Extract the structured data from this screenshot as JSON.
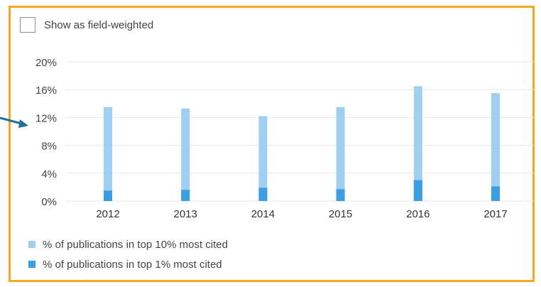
{
  "toggle": {
    "label": "Show as field-weighted",
    "checked": false
  },
  "colors": {
    "frame": "#f5a623",
    "top10": "#9fd0f2",
    "top1": "#3a9ee4",
    "grid": "#e8e8e8",
    "arrow": "#1f6e9c"
  },
  "chart_data": {
    "type": "bar",
    "stacked": false,
    "overlay": true,
    "categories": [
      "2012",
      "2013",
      "2014",
      "2015",
      "2016",
      "2017"
    ],
    "series": [
      {
        "name": "% of publications in top 10% most cited",
        "values": [
          13.5,
          13.3,
          12.2,
          13.5,
          16.5,
          15.5
        ]
      },
      {
        "name": "% of publications in top 1% most cited",
        "values": [
          1.5,
          1.6,
          1.9,
          1.7,
          3.0,
          2.1
        ]
      }
    ],
    "ylim": [
      0,
      20
    ],
    "yticks": [
      "0%",
      "4%",
      "8%",
      "12%",
      "16%",
      "20%"
    ],
    "ytick_values": [
      0,
      4,
      8,
      12,
      16,
      20
    ],
    "grid": true,
    "legend_position": "bottom-left"
  },
  "icons": {
    "pointer": "arrow-right-icon"
  }
}
